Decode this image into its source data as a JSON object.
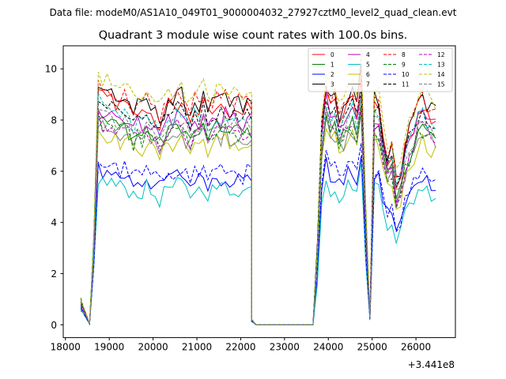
{
  "suptitle": "Data file: modeM0/AS1A10_049T01_9000004032_27927cztM0_level2_quad_clean.evt",
  "chart_data": {
    "type": "line",
    "title": "Quadrant 3 module wise count rates with 100.0s bins.",
    "xlabel": "",
    "ylabel": "",
    "x_offset_label": "+3.441e8",
    "xlim": [
      17950,
      26900
    ],
    "ylim": [
      -0.5,
      10.9
    ],
    "xticks": [
      18000,
      19000,
      20000,
      21000,
      22000,
      23000,
      24000,
      25000,
      26000
    ],
    "yticks": [
      0,
      2,
      4,
      6,
      8,
      10
    ],
    "grid": false,
    "legend": {
      "placement": "top-right",
      "columns": 4
    },
    "segments": [
      {
        "name": "seg1",
        "x_start": 18350,
        "n": 40,
        "base": [
          0.8,
          0.5,
          0.05,
          3.5,
          9.1,
          8.8,
          8.8,
          8.9,
          8.6,
          8.5,
          8.6,
          8.4,
          8.1,
          8.3,
          8.2,
          8.5,
          8.2,
          8.0,
          7.8,
          8.1,
          8.6,
          8.4,
          8.6,
          8.7,
          8.3,
          8.0,
          8.5,
          8.3,
          8.6,
          8.2,
          8.3,
          8.5,
          8.4,
          8.6,
          8.3,
          8.5,
          8.4,
          8.2,
          8.4,
          8.4
        ]
      },
      {
        "name": "seg2",
        "x_start": 22250,
        "n": 15,
        "base": [
          0.2,
          0.01,
          0.01,
          0.01,
          0.01,
          0.01,
          0.01,
          0.01,
          0.01,
          0.01,
          0.01,
          0.01,
          0.01,
          0.01,
          0.01
        ]
      },
      {
        "name": "seg3",
        "x_start": 23750,
        "n": 28,
        "base": [
          3.0,
          7.8,
          9.2,
          8.4,
          8.6,
          8.0,
          8.2,
          8.6,
          8.8,
          8.3,
          9.6,
          4.5,
          0.3,
          8.6,
          8.5,
          7.2,
          6.4,
          6.6,
          5.4,
          5.8,
          6.8,
          7.4,
          7.8,
          8.4,
          8.6,
          8.3,
          8.2,
          8.1
        ]
      }
    ],
    "scales": [
      1.0,
      0.9,
      0.68,
      1.03,
      0.95,
      0.63,
      0.84,
      0.87,
      1.04,
      0.88,
      0.71,
      0.98,
      0.9,
      0.96,
      1.08,
      0.92
    ],
    "series": [
      {
        "name": "0",
        "color": "#ff0000",
        "dash": "solid"
      },
      {
        "name": "1",
        "color": "#008000",
        "dash": "solid"
      },
      {
        "name": "2",
        "color": "#0000ff",
        "dash": "solid"
      },
      {
        "name": "3",
        "color": "#000000",
        "dash": "solid"
      },
      {
        "name": "4",
        "color": "#bf00bf",
        "dash": "solid"
      },
      {
        "name": "5",
        "color": "#00bfbf",
        "dash": "solid"
      },
      {
        "name": "6",
        "color": "#bfbf00",
        "dash": "solid"
      },
      {
        "name": "7",
        "color": "#808080",
        "dash": "solid"
      },
      {
        "name": "8",
        "color": "#ff0000",
        "dash": "dashed"
      },
      {
        "name": "9",
        "color": "#008000",
        "dash": "dashed"
      },
      {
        "name": "10",
        "color": "#0000ff",
        "dash": "dashed"
      },
      {
        "name": "11",
        "color": "#000000",
        "dash": "dashed"
      },
      {
        "name": "12",
        "color": "#bf00bf",
        "dash": "dashed"
      },
      {
        "name": "13",
        "color": "#00bfbf",
        "dash": "dashed"
      },
      {
        "name": "14",
        "color": "#bfbf00",
        "dash": "dashed"
      },
      {
        "name": "15",
        "color": "#808080",
        "dash": "dashed"
      }
    ]
  }
}
